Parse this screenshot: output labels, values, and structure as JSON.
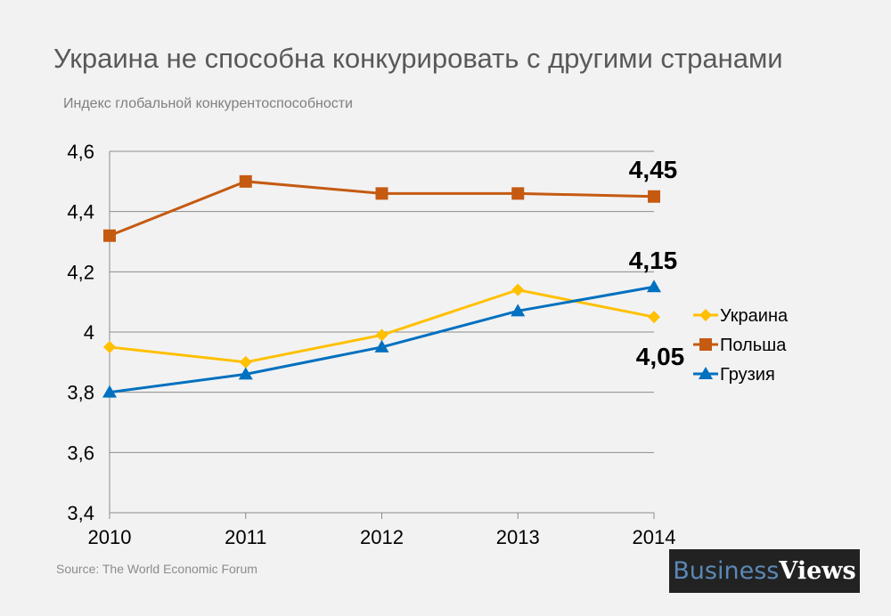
{
  "title": "Украина не способна конкурировать с другими странами",
  "subtitle": "Индекс глобальной конкурентоспособности",
  "source": "Source: The World Economic Forum",
  "logo": {
    "part1": "Business",
    "part2": "Views"
  },
  "chart_data": {
    "type": "line",
    "title": "Украина не способна конкурировать с другими странами",
    "ylabel": "Индекс глобальной конкурентоспособности",
    "categories": [
      "2010",
      "2011",
      "2012",
      "2013",
      "2014"
    ],
    "ylim": [
      3.4,
      4.6
    ],
    "yticks": [
      "3,4",
      "3,6",
      "3,8",
      "4",
      "4,2",
      "4,4",
      "4,6"
    ],
    "grid": true,
    "legend_placement": "right",
    "series": [
      {
        "name": "Украина",
        "values": [
          3.95,
          3.9,
          3.99,
          4.14,
          4.05
        ],
        "color": "#ffc000",
        "marker": "diamond"
      },
      {
        "name": "Польша",
        "values": [
          4.32,
          4.5,
          4.46,
          4.46,
          4.45
        ],
        "color": "#c55a11",
        "marker": "square"
      },
      {
        "name": "Грузия",
        "values": [
          3.8,
          3.86,
          3.95,
          4.07,
          4.15
        ],
        "color": "#0070c0",
        "marker": "triangle"
      }
    ],
    "data_labels": [
      {
        "series": "Польша",
        "category": "2014",
        "text": "4,45"
      },
      {
        "series": "Грузия",
        "category": "2014",
        "text": "4,15"
      },
      {
        "series": "Украина",
        "category": "2014",
        "text": "4,05"
      }
    ]
  }
}
